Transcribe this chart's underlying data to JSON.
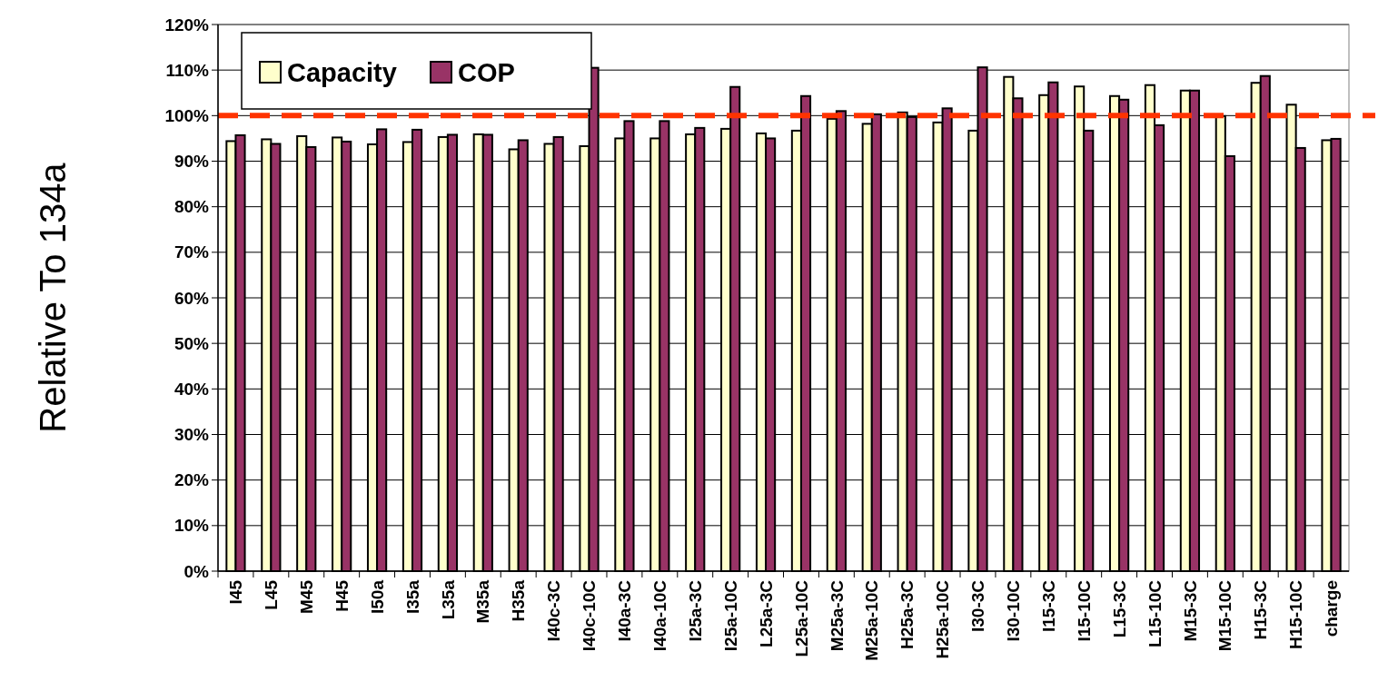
{
  "chart_data": {
    "type": "bar",
    "ylabel": "Relative To 134a",
    "categories": [
      "I45",
      "L45",
      "M45",
      "H45",
      "I50a",
      "I35a",
      "L35a",
      "M35a",
      "H35a",
      "I40c-3C",
      "I40c-10C",
      "I40a-3C",
      "I40a-10C",
      "I25a-3C",
      "I25a-10C",
      "L25a-3C",
      "L25a-10C",
      "M25a-3C",
      "M25a-10C",
      "H25a-3C",
      "H25a-10C",
      "I30-3C",
      "I30-10C",
      "I15-3C",
      "I15-10C",
      "L15-3C",
      "L15-10C",
      "M15-3C",
      "M15-10C",
      "H15-3C",
      "H15-10C",
      "charge"
    ],
    "series": [
      {
        "name": "Capacity",
        "color": "#ffffcc",
        "values": [
          94.4,
          94.8,
          95.5,
          95.2,
          93.7,
          94.2,
          95.3,
          95.9,
          92.6,
          93.8,
          93.3,
          95.0,
          95.0,
          95.9,
          97.1,
          96.1,
          96.7,
          99.3,
          98.2,
          100.7,
          98.5,
          96.7,
          108.5,
          104.5,
          106.4,
          104.3,
          106.7,
          105.5,
          99.9,
          107.2,
          102.4,
          94.6
        ]
      },
      {
        "name": "COP",
        "color": "#993366",
        "values": [
          95.7,
          93.8,
          93.1,
          94.3,
          97.0,
          96.9,
          95.8,
          95.8,
          94.6,
          95.3,
          110.5,
          98.8,
          98.8,
          97.3,
          106.3,
          95.0,
          104.3,
          101.0,
          100.3,
          99.7,
          101.6,
          110.6,
          103.8,
          107.3,
          96.7,
          103.5,
          97.9,
          105.5,
          91.1,
          108.7,
          92.9,
          94.9
        ]
      }
    ],
    "ylim": [
      0,
      120
    ],
    "yticks": [
      {
        "value": 0,
        "label": "0%"
      },
      {
        "value": 10,
        "label": "10%"
      },
      {
        "value": 20,
        "label": "20%"
      },
      {
        "value": 30,
        "label": "30%"
      },
      {
        "value": 40,
        "label": "40%"
      },
      {
        "value": 50,
        "label": "50%"
      },
      {
        "value": 60,
        "label": "60%"
      },
      {
        "value": 70,
        "label": "70%"
      },
      {
        "value": 80,
        "label": "80%"
      },
      {
        "value": 90,
        "label": "90%"
      },
      {
        "value": 100,
        "label": "100%"
      },
      {
        "value": 110,
        "label": "110%"
      },
      {
        "value": 120,
        "label": "120%"
      }
    ],
    "grid": "y",
    "legend": "top left",
    "ref_lines": [
      {
        "axis": "y",
        "value": 100,
        "color": "#ff3300",
        "line_style": "dashed"
      }
    ]
  }
}
